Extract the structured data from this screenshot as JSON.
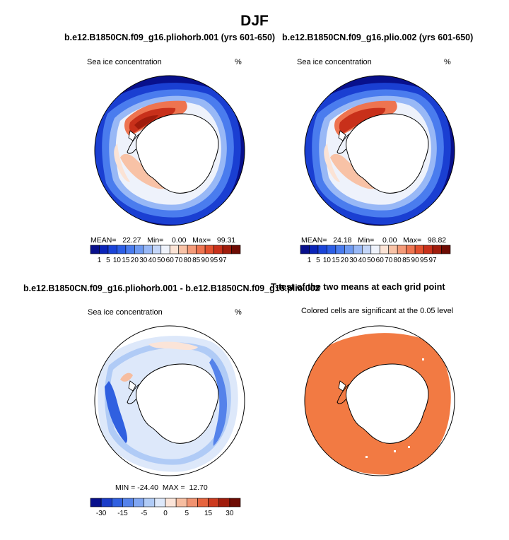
{
  "main_title": "DJF",
  "panels": {
    "p1": {
      "title": "b.e12.B1850CN.f09_g16.pliohorb.001 (yrs 601-650)",
      "left_label": "Sea ice concentration",
      "right_label": "%",
      "stats": "MEAN=   22.27   Min=    0.00   Max=   99.31"
    },
    "p2": {
      "title": "b.e12.B1850CN.f09_g16.plio.002 (yrs 601-650)",
      "left_label": "Sea ice concentration",
      "right_label": "%",
      "stats": "MEAN=   24.18   Min=    0.00   Max=   98.82"
    },
    "p3": {
      "title": "b.e12.B1850CN.f09_g16.pliohorb.001 - b.e12.B1850CN.f09_g16.plio.002",
      "left_label": "Sea ice concentration",
      "right_label": "%",
      "stats": "MIN = -24.40  MAX =  12.70"
    },
    "p4": {
      "title": "T-test of the two means at each grid point",
      "subtitle": "Colored cells are significant at the 0.05 level"
    }
  },
  "colorbar_abs": {
    "colors": [
      "#08108c",
      "#0a24b8",
      "#1a44d8",
      "#2c5ee6",
      "#4a7cee",
      "#6e9af2",
      "#98b8f6",
      "#c4d6f8",
      "#eef2fb",
      "#fbe3d5",
      "#f8c2a6",
      "#f49a78",
      "#ee7450",
      "#e2502e",
      "#c8301a",
      "#a01c0c",
      "#6e0c04"
    ],
    "labels": [
      "1",
      "5",
      "10",
      "15",
      "20",
      "30",
      "40",
      "50",
      "60",
      "70",
      "80",
      "85",
      "90",
      "95",
      "97"
    ]
  },
  "colorbar_diff": {
    "colors": [
      "#08108c",
      "#1a3cc8",
      "#3060e0",
      "#5482ea",
      "#80a6f2",
      "#b0cbf6",
      "#dde8fa",
      "#fbe4d8",
      "#f6bda0",
      "#f09270",
      "#e6643e",
      "#cc3a1e",
      "#a01c0c",
      "#6e0c04"
    ],
    "labels": [
      "-30",
      "-15",
      "-5",
      "0",
      "5",
      "15",
      "30"
    ]
  },
  "colors": {
    "significance": "#f27a43",
    "land": "#ffffff",
    "outline": "#000000"
  }
}
